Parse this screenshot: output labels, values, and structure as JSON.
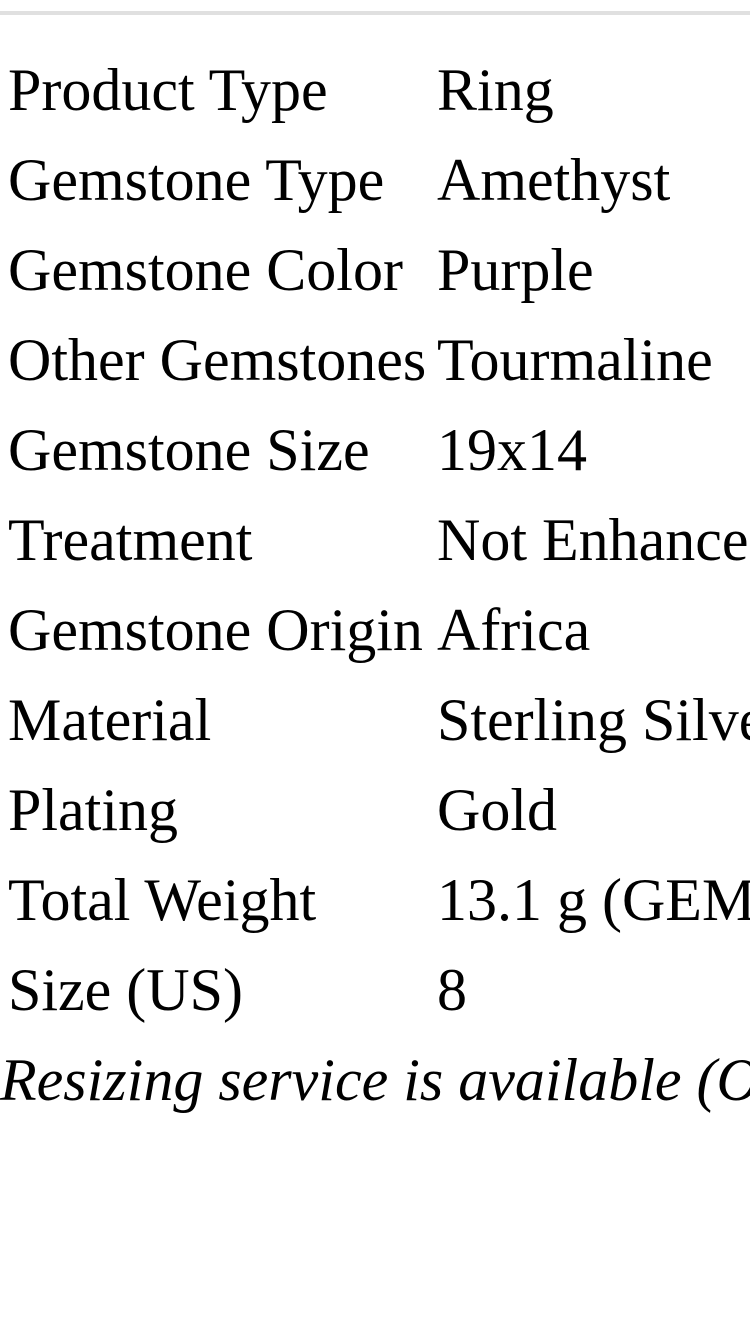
{
  "page": {
    "background_color": "#ffffff",
    "text_color": "#000000",
    "divider_color": "#e0e0e0"
  },
  "specs": {
    "rows": [
      {
        "label": "Product Type",
        "value": "Ring"
      },
      {
        "label": "Gemstone Type",
        "value": "Amethyst"
      },
      {
        "label": "Gemstone Color",
        "value": "Purple"
      },
      {
        "label": "Other Gemstones",
        "value": "Tourmaline"
      },
      {
        "label": "Gemstone Size",
        "value": "19x14"
      },
      {
        "label": "Treatment",
        "value": "Not Enhanced"
      },
      {
        "label": "Gemstone Origin",
        "value": "Africa"
      },
      {
        "label": "Material",
        "value": "Sterling Silver"
      },
      {
        "label": "Plating",
        "value": "Gold"
      },
      {
        "label": "Total Weight",
        "value": "13.1 g (GEM"
      },
      {
        "label": "Size (US)",
        "value": "8"
      }
    ]
  },
  "footnote": {
    "text": "Resizing service is available (O"
  }
}
